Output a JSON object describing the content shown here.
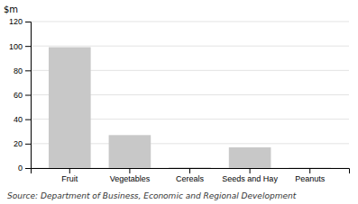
{
  "chart_data": {
    "type": "bar",
    "categories": [
      "Fruit",
      "Vegetables",
      "Cereals",
      "Seeds and Hay",
      "Peanuts"
    ],
    "values": [
      99,
      27,
      0.5,
      17,
      0.3
    ],
    "color": "#c8c8c8",
    "ylim": [
      0,
      120
    ],
    "yticks": [
      0,
      20,
      40,
      60,
      80,
      100,
      120
    ],
    "y_label": "$m",
    "annotations": [
      "Source: Department of Business, Economic and Regional Development"
    ],
    "grid": true
  }
}
